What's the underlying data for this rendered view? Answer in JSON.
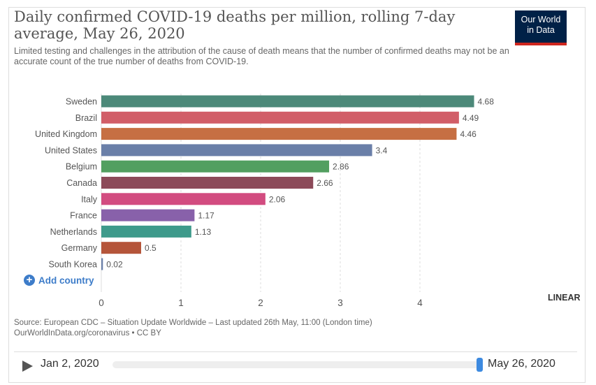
{
  "title": "Daily confirmed COVID-19 deaths per million, rolling 7-day average, May 26, 2020",
  "subtitle": "Limited testing and challenges in the attribution of the cause of death means that the number of confirmed deaths may not be an accurate count of the true number of deaths from COVID-19.",
  "logo": {
    "line1": "Our World",
    "line2": "in Data"
  },
  "add_country": "Add country",
  "scale_toggle": "LINEAR",
  "source_line1": "Source: European CDC – Situation Update Worldwide – Last updated 26th May, 11:00 (London time)",
  "source_line2": "OurWorldInData.org/coronavirus • CC BY",
  "timeline": {
    "start": "Jan 2, 2020",
    "end": "May 26, 2020"
  },
  "chart_data": {
    "type": "bar",
    "orientation": "horizontal",
    "categories": [
      "Sweden",
      "Brazil",
      "United Kingdom",
      "United States",
      "Belgium",
      "Canada",
      "Italy",
      "France",
      "Netherlands",
      "Germany",
      "South Korea"
    ],
    "values": [
      4.68,
      4.49,
      4.46,
      3.4,
      2.86,
      2.66,
      2.06,
      1.17,
      1.13,
      0.5,
      0.02
    ],
    "value_labels": [
      "4.68",
      "4.49",
      "4.46",
      "3.4",
      "2.86",
      "2.66",
      "2.06",
      "1.17",
      "1.13",
      "0.5",
      "0.02"
    ],
    "colors": [
      "#4c8979",
      "#d15e68",
      "#c66f43",
      "#6a7fa8",
      "#529f60",
      "#8c4a59",
      "#d24c80",
      "#8861aa",
      "#3e9a8b",
      "#b5553a",
      "#6a7fa8"
    ],
    "x_ticks": [
      "0",
      "1",
      "2",
      "3",
      "4"
    ],
    "xlim": [
      0,
      4.68
    ],
    "grid": true
  }
}
